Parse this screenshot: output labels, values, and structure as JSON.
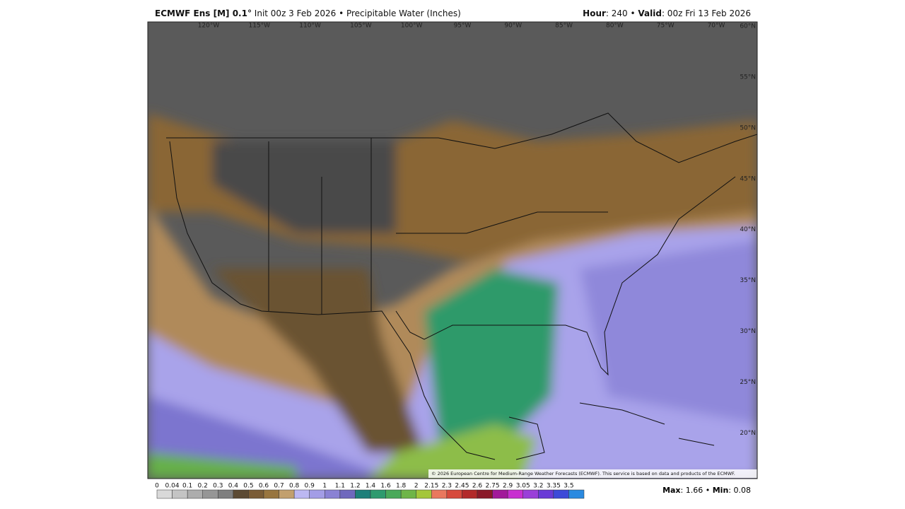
{
  "header": {
    "left": {
      "model": "ECMWF Ens [M] 0.1°",
      "init": "Init 00z 3 Feb 2026",
      "separator": "•",
      "field": "Precipitable Water (Inches)"
    },
    "right": {
      "hour_label": "Hour",
      "hour_value": ": 240",
      "separator": "•",
      "valid_label": "Valid",
      "valid_value": ": 00z Fri 13 Feb 2026"
    }
  },
  "map": {
    "longitude_labels": [
      "120°W",
      "115°W",
      "110°W",
      "105°W",
      "100°W",
      "95°W",
      "90°W",
      "85°W",
      "80°W",
      "75°W",
      "70°W"
    ],
    "latitude_labels": [
      "60°N",
      "55°N",
      "50°N",
      "45°N",
      "40°N",
      "35°N",
      "30°N",
      "25°N",
      "20°N"
    ],
    "copyright": "© 2026 European Centre for Medium-Range Weather Forecasts (ECMWF). This service is based on data and products of the ECMWF."
  },
  "colorbar": {
    "labels": [
      "0",
      "0.04",
      "0.1",
      "0.2",
      "0.3",
      "0.4",
      "0.5",
      "0.6",
      "0.7",
      "0.8",
      "0.9",
      "1",
      "1.1",
      "1.2",
      "1.4",
      "1.6",
      "1.8",
      "2",
      "2.15",
      "2.3",
      "2.45",
      "2.6",
      "2.75",
      "2.9",
      "3.05",
      "3.2",
      "3.35",
      "3.5"
    ],
    "colors": [
      "#d9d9d9",
      "#c4c4c4",
      "#adadad",
      "#969696",
      "#7f7f7f",
      "#5c4a33",
      "#7a5c36",
      "#98753f",
      "#c2a06e",
      "#bcb8f2",
      "#a39de6",
      "#8a82d4",
      "#6f68bd",
      "#1e7f7a",
      "#2e9a6e",
      "#4aa95a",
      "#6fb548",
      "#a4c63a",
      "#e9785e",
      "#d64a3c",
      "#b22a2a",
      "#8a1a2a",
      "#a21a9a",
      "#c82fd0",
      "#9a3fd8",
      "#6a3ad6",
      "#3d4ad8",
      "#2a8ae0"
    ]
  },
  "stats": {
    "max_label": "Max",
    "max_value": ": 1.66",
    "separator": "•",
    "min_label": "Min",
    "min_value": ": 0.08"
  }
}
